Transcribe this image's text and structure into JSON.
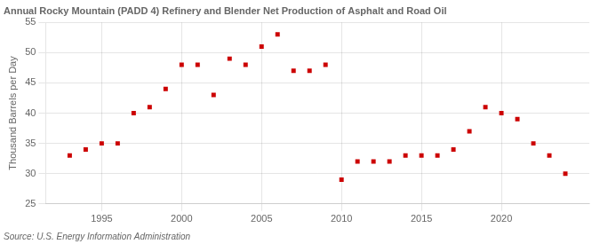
{
  "chart_data": {
    "type": "scatter",
    "title": "Annual Rocky Mountain (PADD 4) Refinery and Blender Net Production of Asphalt and Road Oil",
    "ylabel": "Thousand Barrels per Day",
    "annotations": [
      "Source: U.S. Energy Information Administration"
    ],
    "x": [
      1993,
      1994,
      1995,
      1996,
      1997,
      1998,
      1999,
      2000,
      2001,
      2002,
      2003,
      2004,
      2005,
      2006,
      2007,
      2008,
      2009,
      2010,
      2011,
      2012,
      2013,
      2014,
      2015,
      2016,
      2017,
      2018,
      2019,
      2020,
      2021,
      2022,
      2023,
      2024
    ],
    "values": [
      33,
      34,
      35,
      35,
      40,
      41,
      44,
      48,
      48,
      43,
      49,
      48,
      51,
      53,
      47,
      47,
      48,
      29,
      32,
      32,
      32,
      33,
      33,
      33,
      34,
      37,
      41,
      40,
      39,
      35,
      33,
      30
    ],
    "color": "#cc0000",
    "marker": "square",
    "xlim": [
      1991.5,
      2025.5
    ],
    "ylim": [
      25,
      55
    ],
    "xticks": [
      1995,
      2000,
      2005,
      2010,
      2015,
      2020
    ],
    "yticks": [
      25,
      30,
      35,
      40,
      45,
      50,
      55
    ],
    "grid": true
  }
}
